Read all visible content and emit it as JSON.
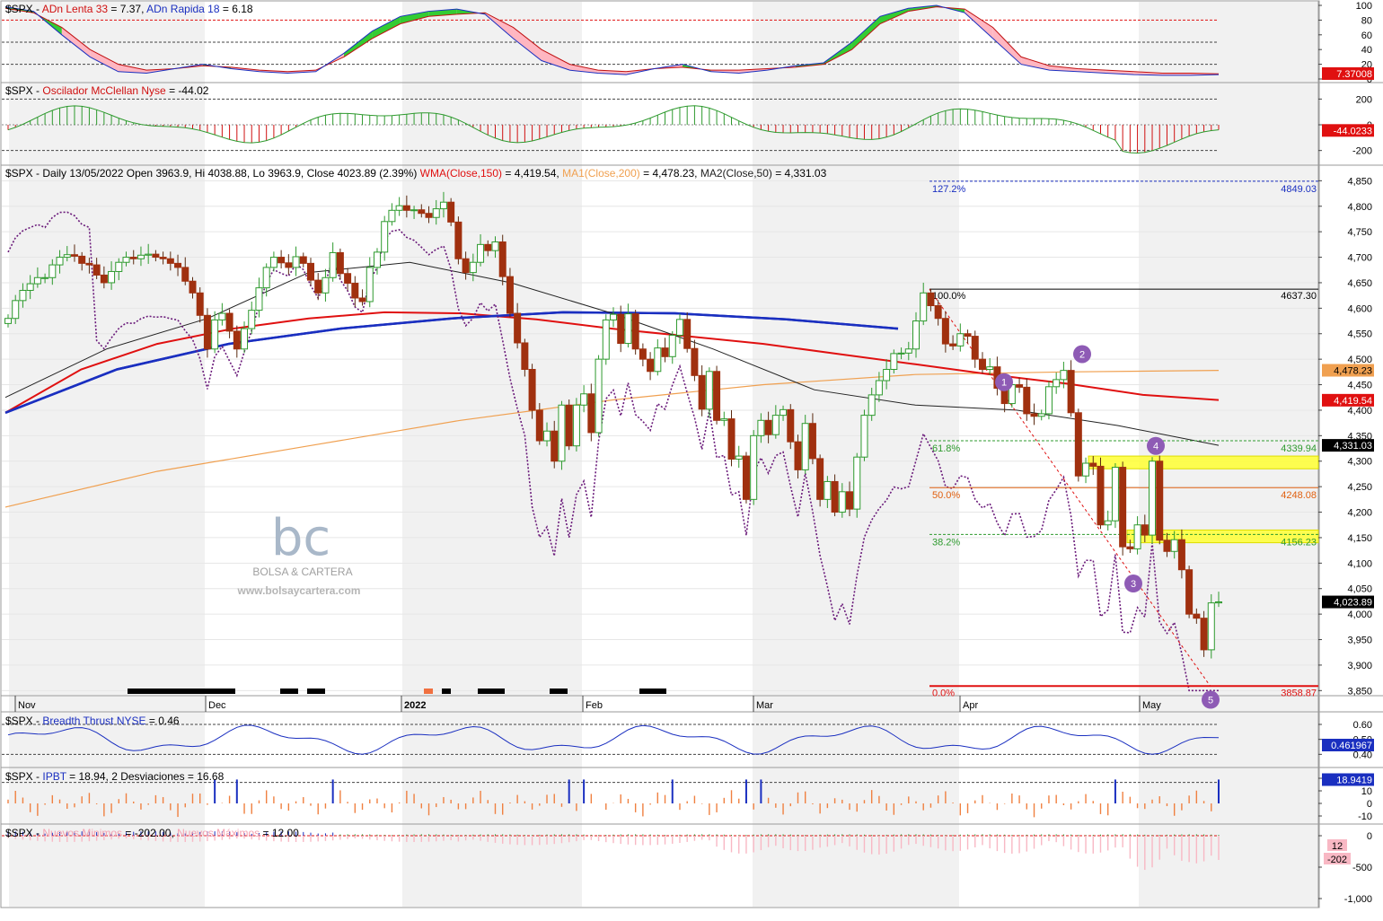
{
  "colors": {
    "up": "#2e9a2e",
    "down": "#a0300f",
    "wma150": "#e01010",
    "ma200": "#f0a050",
    "ma50": "#222222",
    "blue_ma": "#1a2fc0",
    "breadth_dots": "#6a1a7a",
    "yellow_zone": "#ffff33",
    "fib_green": "#2e9a2e",
    "fib_orange": "#e06010",
    "fib_blue": "#1a2fc0",
    "badge": "#8e5bb5"
  },
  "watermark": {
    "logo": "bc",
    "name": "BOLSA & CARTERA",
    "url": "www.bolsaycartera.com"
  },
  "panel1": {
    "title_prefix": "$SPX - ",
    "title_a": "ADn Lenta 33",
    "title_a_val": " = 7.37, ",
    "title_b": "ADn Rapida 18",
    "title_b_val": " = 6.18",
    "y_ticks": [
      "100",
      "80",
      "60",
      "40",
      "20",
      "0"
    ],
    "badge": "7.37008"
  },
  "panel2": {
    "title_prefix": "$SPX - ",
    "title_a": "Oscilador McClellan Nyse",
    "title_a_val": " = -44.02",
    "y_ticks": [
      "200",
      "0",
      "-200"
    ],
    "badge": "-44.0233"
  },
  "panel3": {
    "title_prefix": "$SPX - Daily 13/05/2022 Open 3963.9, Hi 4038.88, Lo 3963.9, Close 4023.89 (2.39%) ",
    "title_wma": "WMA(Close,150)",
    "title_wma_val": " = 4,419.54, ",
    "title_ma1": "MA1(Close,200)",
    "title_ma1_val": " = 4,478.23, ",
    "title_ma2": "MA2(Close,50)",
    "title_ma2_val": " = 4,331.03",
    "y_ticks": [
      "4,850",
      "4,800",
      "4,750",
      "4,700",
      "4,650",
      "4,600",
      "4,550",
      "4,500",
      "4,450",
      "4,400",
      "4,350",
      "4,300",
      "4,250",
      "4,200",
      "4,150",
      "4,100",
      "4,050",
      "4,000",
      "3,950",
      "3,900",
      "3,850"
    ],
    "months": [
      "Nov",
      "Dec",
      "2022",
      "Feb",
      "Mar",
      "Apr",
      "May"
    ],
    "badges": {
      "ma1": "4,478.23",
      "wma": "4,419.54",
      "ma2": "4,331.03",
      "close": "4,023.89"
    },
    "fib": {
      "f1272": "127.2%",
      "f1272_val": "4849.03",
      "f100": "100.0%",
      "f100_val": "4637.30",
      "f618": "61.8%",
      "f618_val": "4339.94",
      "f50": "50.0%",
      "f50_val": "4248.08",
      "f382": "38.2%",
      "f382_val": "4156.23",
      "f0": "0.0%",
      "f0_val": "3858.87"
    },
    "waves": [
      "1",
      "2",
      "3",
      "4",
      "5"
    ]
  },
  "panel4": {
    "title_prefix": "$SPX - ",
    "title_a": "Breadth Thrust NYSE",
    "title_a_val": " = 0.46",
    "y_ticks": [
      "0.60",
      "0.50",
      "0.40"
    ],
    "badge": "0.461967"
  },
  "panel5": {
    "title_prefix": "$SPX - ",
    "title_a": "IPBT",
    "title_a_val": " = 18.94, ",
    "title_b": "2 Desviaciones",
    "title_b_val": " = 16.68",
    "y_ticks": [
      "20",
      "10",
      "0",
      "-10"
    ],
    "badge": "18.9419"
  },
  "panel6": {
    "title_prefix": "$SPX - ",
    "title_a": "Nuevos Minimos",
    "title_a_val": " = -202.00, ",
    "title_b": "Nuevos Máximos",
    "title_b_val": " = 12.00",
    "y_ticks": [
      "0",
      "-500",
      "-1,000"
    ],
    "badge_a": "12",
    "badge_b": "-202"
  },
  "chart_data": {
    "type": "candlestick",
    "title": "$SPX - Daily 13/05/2022 Open 3963.9, Hi 4038.88, Lo 3963.9, Close 4023.89 (2.39%)",
    "ylim": [
      3840,
      4870
    ],
    "x_labels": [
      "Nov",
      "Dec",
      "2022",
      "Feb",
      "Mar",
      "Apr",
      "May"
    ],
    "candles_close": [
      4580,
      4615,
      4635,
      4648,
      4660,
      4660,
      4685,
      4700,
      4705,
      4702,
      4688,
      4685,
      4665,
      4650,
      4672,
      4690,
      4700,
      4697,
      4704,
      4706,
      4700,
      4697,
      4688,
      4680,
      4653,
      4630,
      4586,
      4520,
      4577,
      4590,
      4555,
      4520,
      4560,
      4596,
      4640,
      4680,
      4700,
      4689,
      4680,
      4701,
      4688,
      4655,
      4630,
      4660,
      4709,
      4668,
      4649,
      4620,
      4613,
      4680,
      4710,
      4770,
      4792,
      4801,
      4792,
      4793,
      4786,
      4778,
      4795,
      4808,
      4769,
      4697,
      4670,
      4690,
      4725,
      4713,
      4730,
      4662,
      4590,
      4532,
      4480,
      4400,
      4340,
      4359,
      4300,
      4410,
      4330,
      4410,
      4432,
      4356,
      4500,
      4577,
      4588,
      4531,
      4589,
      4520,
      4500,
      4476,
      4522,
      4505,
      4547,
      4578,
      4521,
      4468,
      4402,
      4476,
      4380,
      4383,
      4304,
      4310,
      4225,
      4350,
      4380,
      4352,
      4390,
      4401,
      4338,
      4283,
      4374,
      4305,
      4225,
      4260,
      4200,
      4240,
      4206,
      4308,
      4390,
      4430,
      4458,
      4480,
      4511,
      4512,
      4520,
      4575,
      4630,
      4605,
      4580,
      4530,
      4526,
      4550,
      4545,
      4500,
      4480,
      4485,
      4443,
      4413,
      4450,
      4445,
      4393,
      4388,
      4393,
      4446,
      4460,
      4478,
      4395,
      4271,
      4296,
      4290,
      4175,
      4183,
      4288,
      4132,
      4128,
      4175,
      4155,
      4300,
      4145,
      4123,
      4146,
      4087,
      4000,
      3992,
      3930,
      4022,
      4024
    ],
    "wma_150_approx": [
      4395,
      4480,
      4530,
      4560,
      4580,
      4592,
      4590,
      4578,
      4560,
      4545,
      4530,
      4510,
      4490,
      4470,
      4452,
      4430,
      4420
    ],
    "ma_200_approx": [
      4210,
      4280,
      4330,
      4380,
      4420,
      4450,
      4470,
      4475,
      4478
    ],
    "ma_50_approx": [
      4425,
      4520,
      4580,
      4670,
      4690,
      4650,
      4590,
      4520,
      4440,
      4410,
      4400,
      4370,
      4331
    ],
    "fibonacci": {
      "127.2%": 4849.03,
      "100.0%": 4637.3,
      "61.8%": 4339.94,
      "50.0%": 4248.08,
      "38.2%": 4156.23,
      "0.0%": 3858.87
    },
    "resistance_zones": [
      [
        4285,
        4310
      ],
      [
        4140,
        4165
      ]
    ],
    "elliott_waves": {
      "1": 4455,
      "2": 4510,
      "3": 4060,
      "4": 4330,
      "5": 3840
    },
    "last_values": {
      "close": 4023.89,
      "wma150": 4419.54,
      "ma200": 4478.23,
      "ma50": 4331.03
    }
  }
}
